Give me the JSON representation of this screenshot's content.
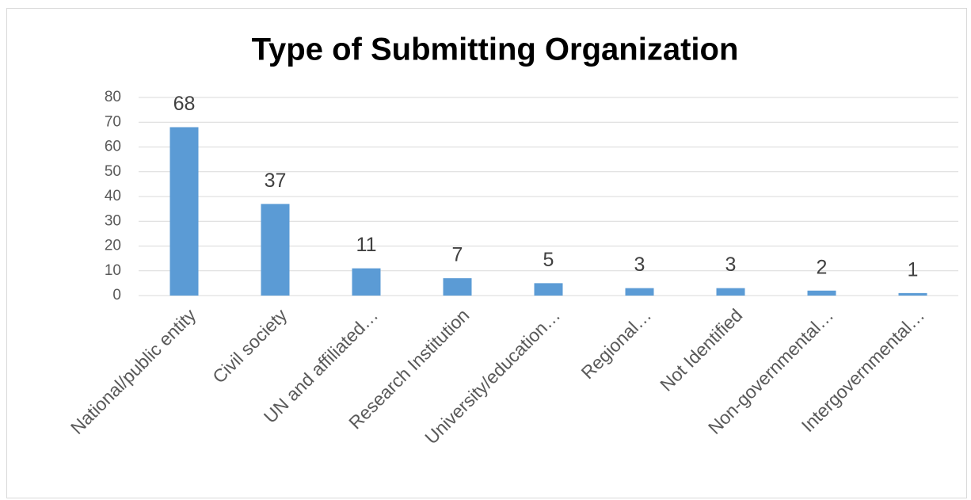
{
  "chart_data": {
    "type": "bar",
    "title": "Type of Submitting Organization",
    "categories": [
      "National/public entity",
      "Civil society",
      "UN and affiliated…",
      "Research Institution",
      "University/education…",
      "Regional…",
      "Not Identified",
      "Non-governmental…",
      "Intergovernmental…"
    ],
    "values": [
      68,
      37,
      11,
      7,
      5,
      3,
      3,
      2,
      1
    ],
    "color": "#5b9bd5",
    "ylim": [
      0,
      80
    ],
    "yticks": [
      0,
      10,
      20,
      30,
      40,
      50,
      60,
      70,
      80
    ],
    "grid": true,
    "data_labels": true
  }
}
